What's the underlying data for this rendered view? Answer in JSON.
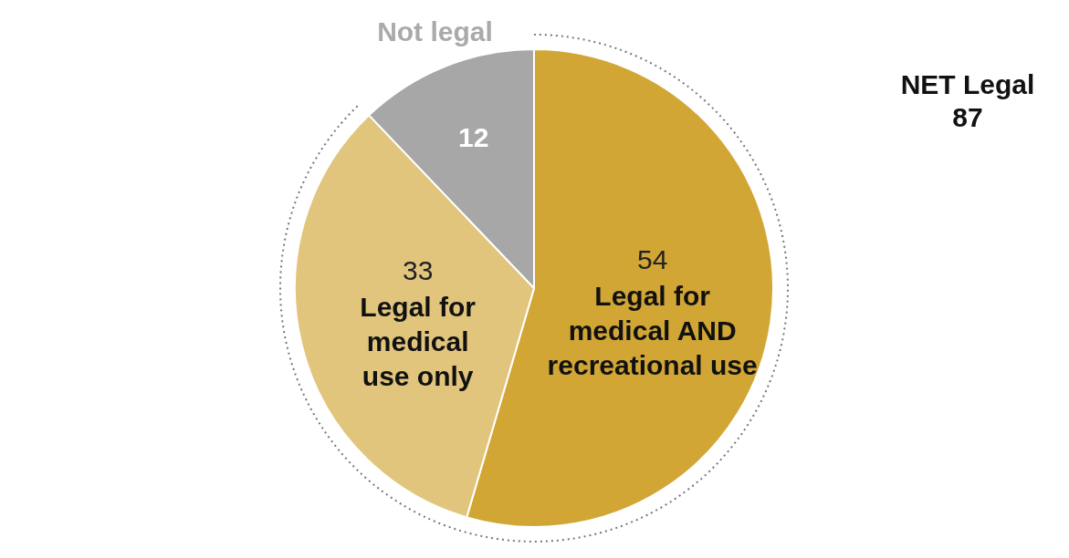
{
  "chart_data": {
    "type": "pie",
    "categories": [
      "Legal for medical AND recreational use",
      "Legal for medical use only",
      "Not legal"
    ],
    "values": [
      54,
      33,
      12
    ],
    "colors": [
      "#d1a634",
      "#e1c57c",
      "#a7a7a7"
    ],
    "data_labels": true,
    "annotations": [
      "NET Legal 87"
    ]
  }
}
